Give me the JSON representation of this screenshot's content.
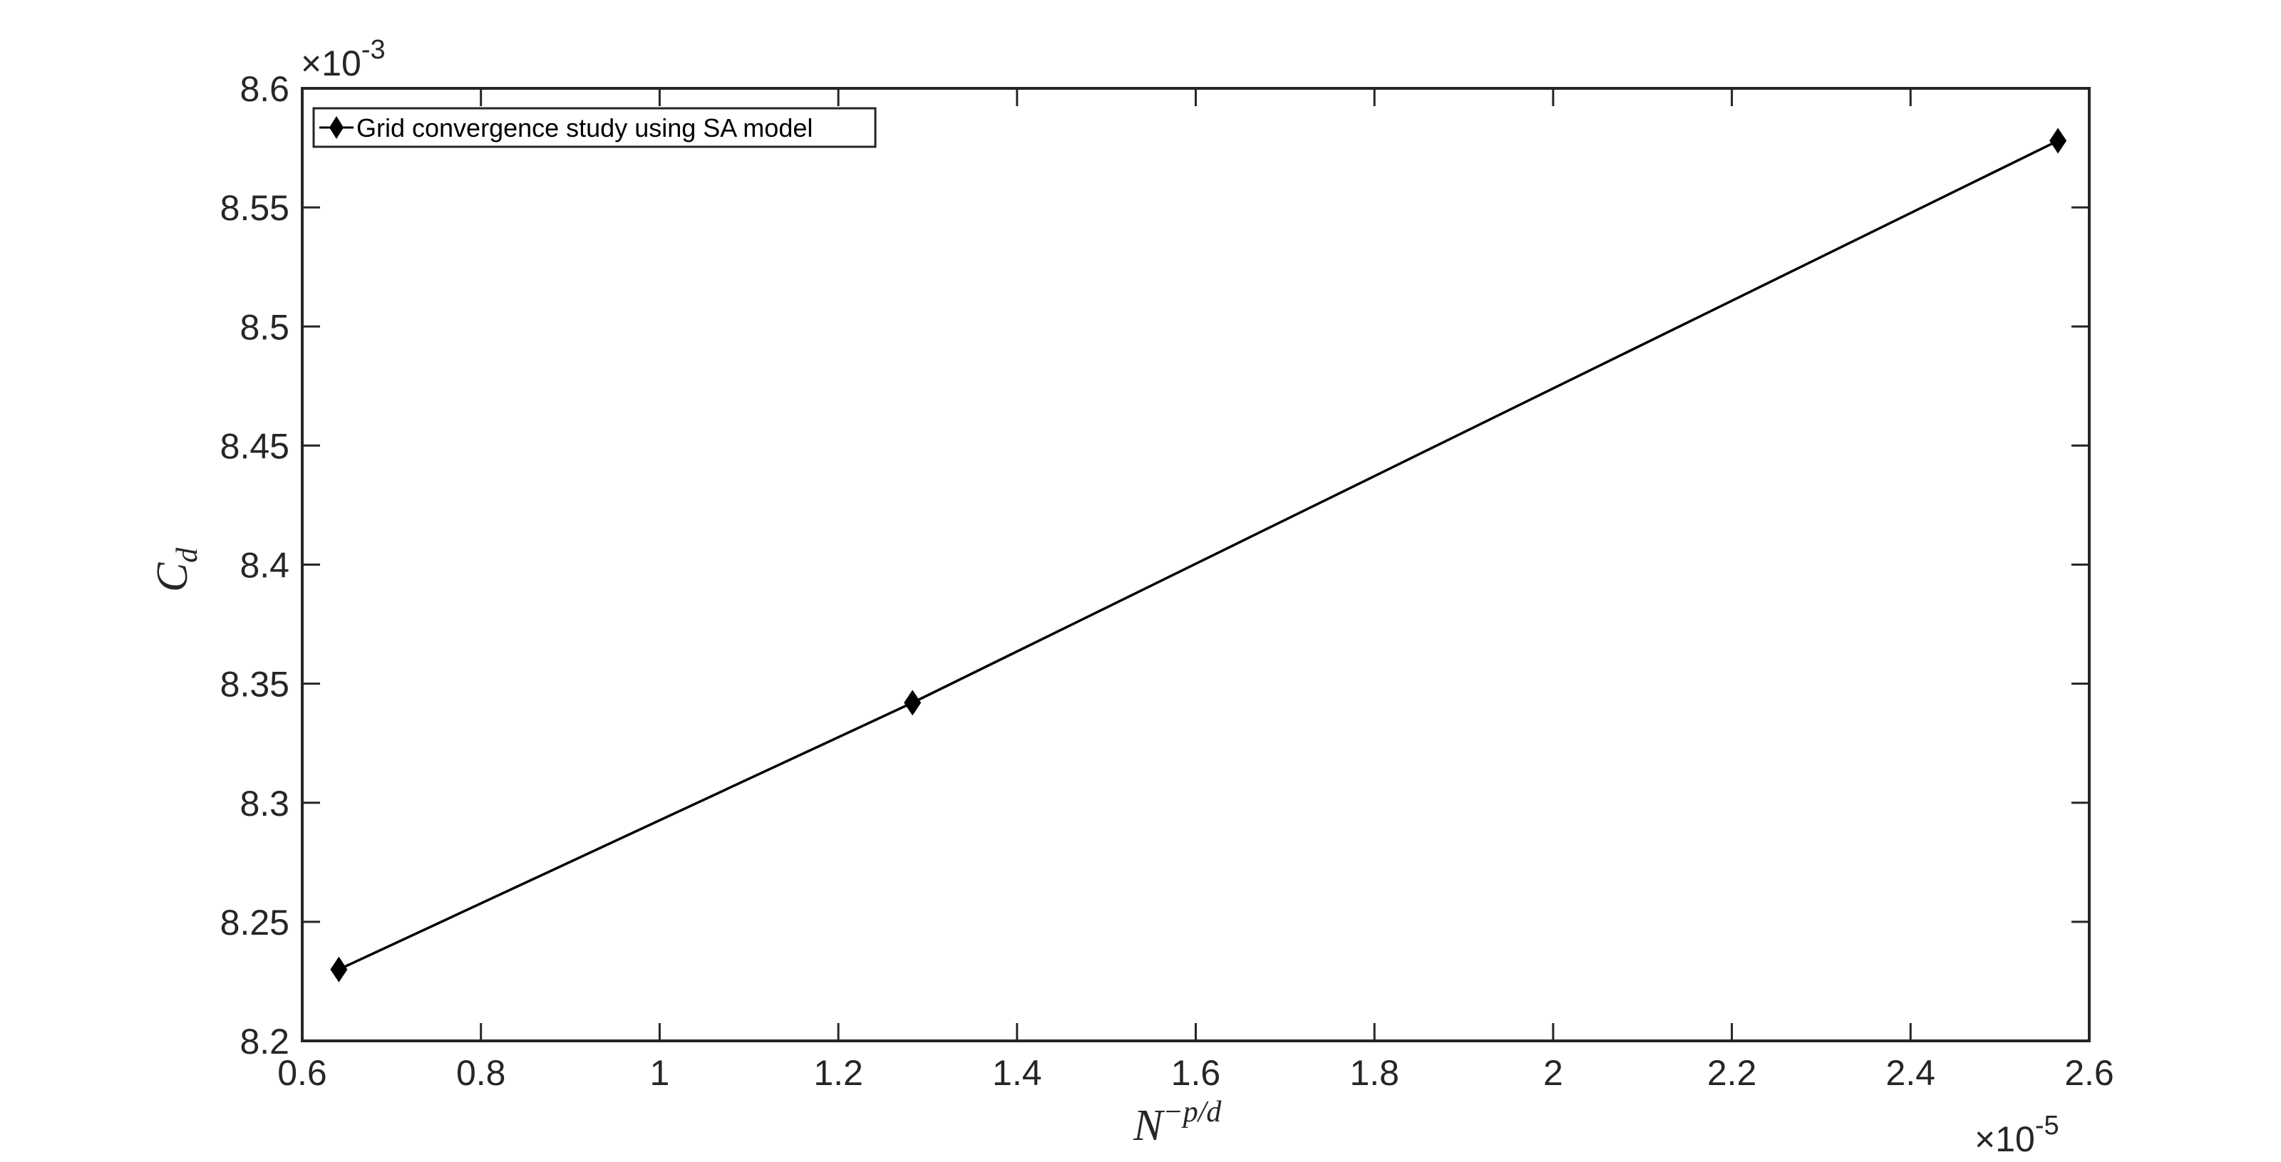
{
  "chart_data": {
    "type": "line",
    "title": "",
    "xlabel": "N^{-p/d}",
    "xlabel_base": "N",
    "xlabel_sup": "−p/d",
    "ylabel": "C_d",
    "ylabel_base": "C",
    "ylabel_sub": "d",
    "xlim": [
      0.6,
      2.6
    ],
    "ylim": [
      8.2,
      8.6
    ],
    "x_multiplier": "×10",
    "x_multiplier_exp": "-5",
    "y_multiplier": "×10",
    "y_multiplier_exp": "-3",
    "xticks": [
      "0.6",
      "0.8",
      "1",
      "1.2",
      "1.4",
      "1.6",
      "1.8",
      "2",
      "2.2",
      "2.4",
      "2.6"
    ],
    "yticks": [
      "8.2",
      "8.25",
      "8.3",
      "8.35",
      "8.4",
      "8.45",
      "8.5",
      "8.55",
      "8.6"
    ],
    "grid": false,
    "legend_position": "top-left",
    "series": [
      {
        "name": "Grid convergence study using SA model",
        "color": "#000000",
        "marker": "diamond",
        "x": [
          0.641,
          1.283,
          2.565
        ],
        "y": [
          8.23,
          8.342,
          8.578
        ]
      }
    ]
  }
}
